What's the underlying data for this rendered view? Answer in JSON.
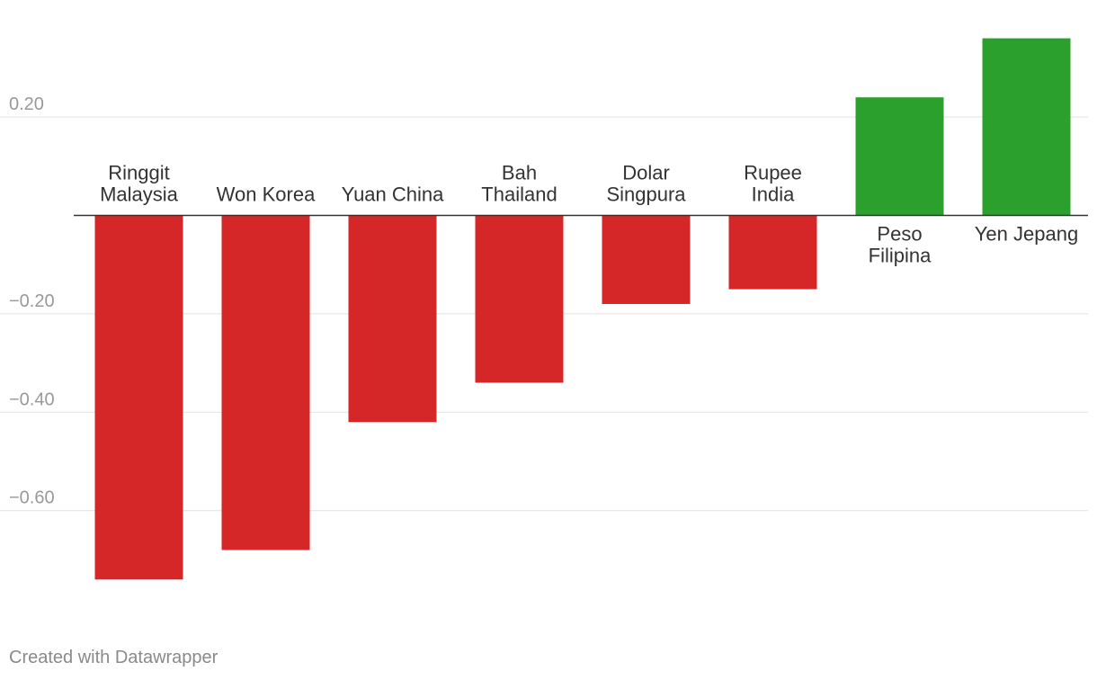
{
  "chart_data": {
    "type": "bar",
    "title": "",
    "xlabel": "",
    "ylabel": "",
    "categories": [
      [
        "Ringgit",
        "Malaysia"
      ],
      [
        "Won Korea"
      ],
      [
        "Yuan China"
      ],
      [
        "Bah",
        "Thailand"
      ],
      [
        "Dolar",
        "Singpura"
      ],
      [
        "Rupee",
        "India"
      ],
      [
        "Peso",
        "Filipina"
      ],
      [
        "Yen Jepang"
      ]
    ],
    "values": [
      -0.74,
      -0.68,
      -0.42,
      -0.34,
      -0.18,
      -0.15,
      0.24,
      0.36
    ],
    "yticks": [
      0.2,
      -0.2,
      -0.4,
      -0.6
    ],
    "ytick_labels": [
      "0.20",
      "−0.20",
      "−0.40",
      "−0.60"
    ],
    "ylim": [
      -0.83,
      0.4
    ],
    "grid": true,
    "colors": {
      "negative": "#d62728",
      "positive": "#2ca02c"
    }
  },
  "footer": {
    "credit": "Created with Datawrapper"
  }
}
